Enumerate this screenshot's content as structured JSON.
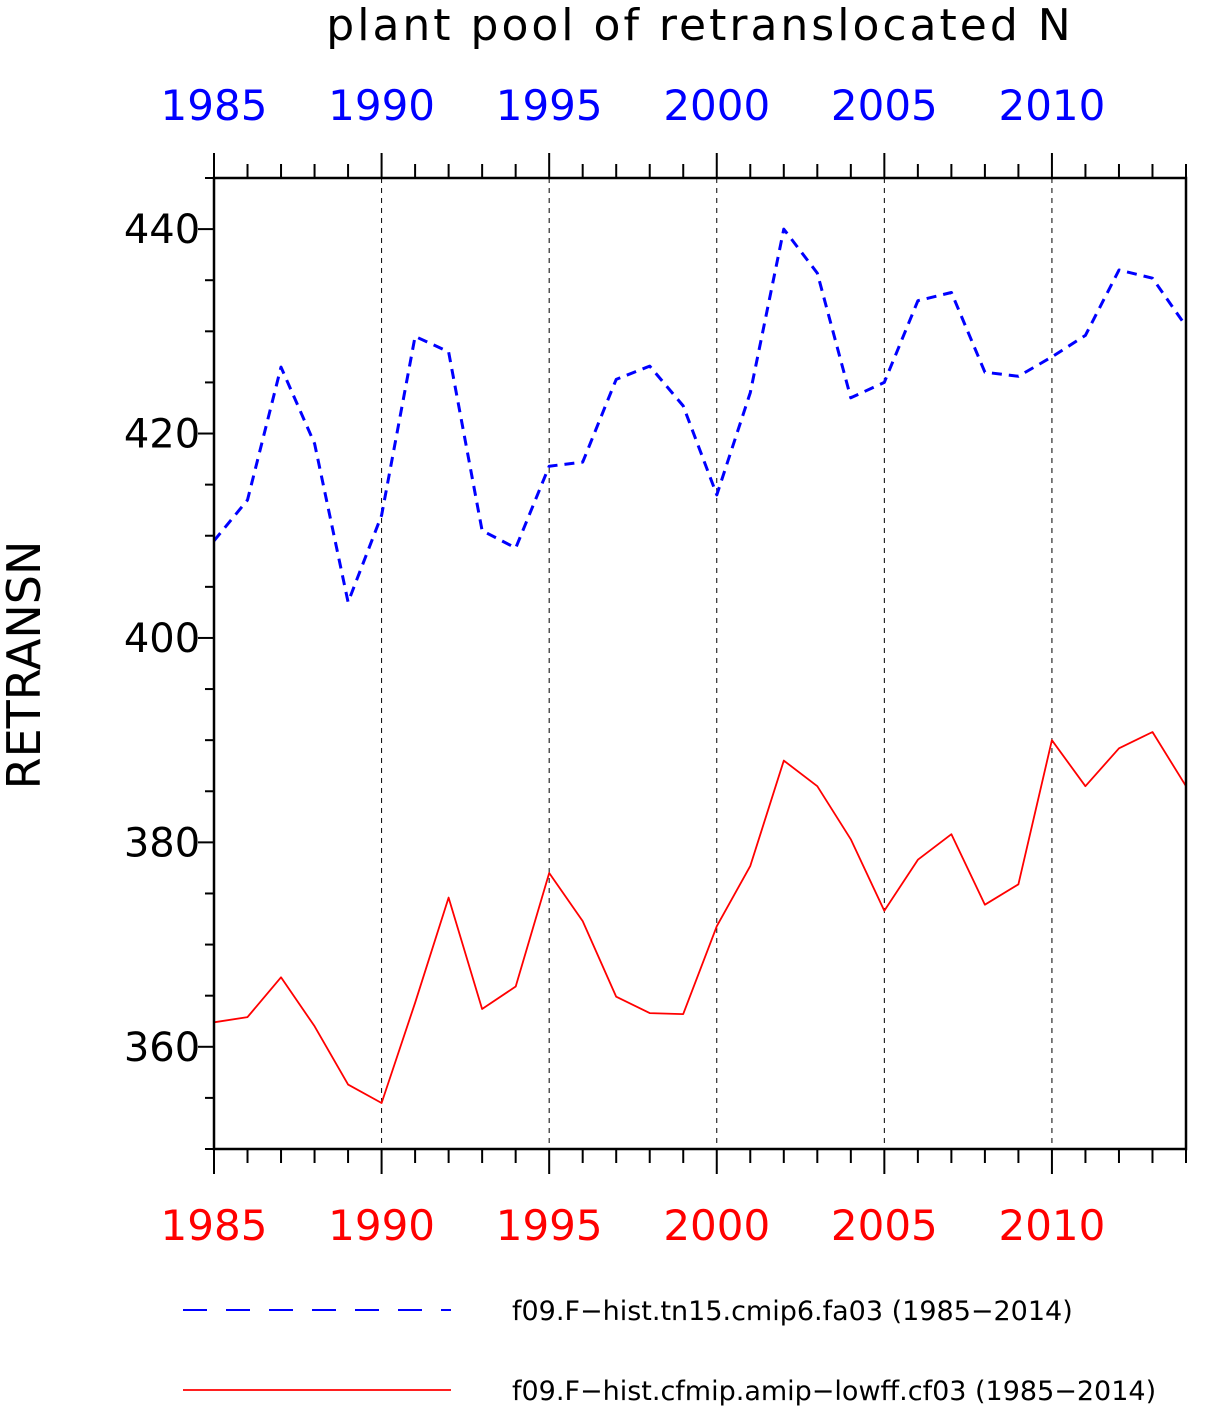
{
  "chart_data": {
    "type": "line",
    "title": "plant pool of retranslocated N",
    "ylabel": "RETRANSN",
    "xlim": [
      1985,
      2014
    ],
    "ylim": [
      350,
      445
    ],
    "yticks_major": [
      360,
      380,
      400,
      420,
      440
    ],
    "yticks_minor_step": 5,
    "xticks_major": [
      1985,
      1990,
      1995,
      2000,
      2005,
      2010
    ],
    "xtick_labels": [
      "1985",
      "1990",
      "1995",
      "2000",
      "2005",
      "2010"
    ],
    "vertical_gridlines": [
      1990,
      1995,
      2000,
      2005,
      2010
    ],
    "x": [
      1985,
      1986,
      1987,
      1988,
      1989,
      1990,
      1991,
      1992,
      1993,
      1994,
      1995,
      1996,
      1997,
      1998,
      1999,
      2000,
      2001,
      2002,
      2003,
      2004,
      2005,
      2006,
      2007,
      2008,
      2009,
      2010,
      2011,
      2012,
      2013,
      2014
    ],
    "series": [
      {
        "name": "f09.F−hist.tn15.cmip6.fa03 (1985−2014)",
        "color": "#0000ff",
        "style": "dashed",
        "values": [
          409.5,
          413.5,
          426.5,
          419.0,
          403.5,
          412.0,
          429.5,
          428.0,
          410.5,
          408.8,
          416.8,
          417.2,
          425.3,
          426.6,
          422.7,
          414.0,
          424.0,
          440.0,
          435.7,
          423.5,
          425.0,
          433.0,
          433.8,
          426.0,
          425.6,
          427.5,
          429.6,
          436.0,
          435.2,
          430.5
        ]
      },
      {
        "name": "f09.F−hist.cfmip.amip−lowff.cf03 (1985−2014)",
        "color": "#ff0000",
        "style": "solid",
        "values": [
          362.4,
          362.9,
          366.8,
          362.0,
          356.3,
          354.5,
          364.3,
          374.6,
          363.7,
          365.9,
          377.0,
          372.3,
          364.9,
          363.3,
          363.2,
          371.8,
          377.7,
          388.0,
          385.5,
          380.3,
          373.3,
          378.3,
          380.8,
          373.9,
          375.9,
          390.0,
          385.5,
          389.2,
          390.8,
          385.5
        ]
      }
    ]
  }
}
